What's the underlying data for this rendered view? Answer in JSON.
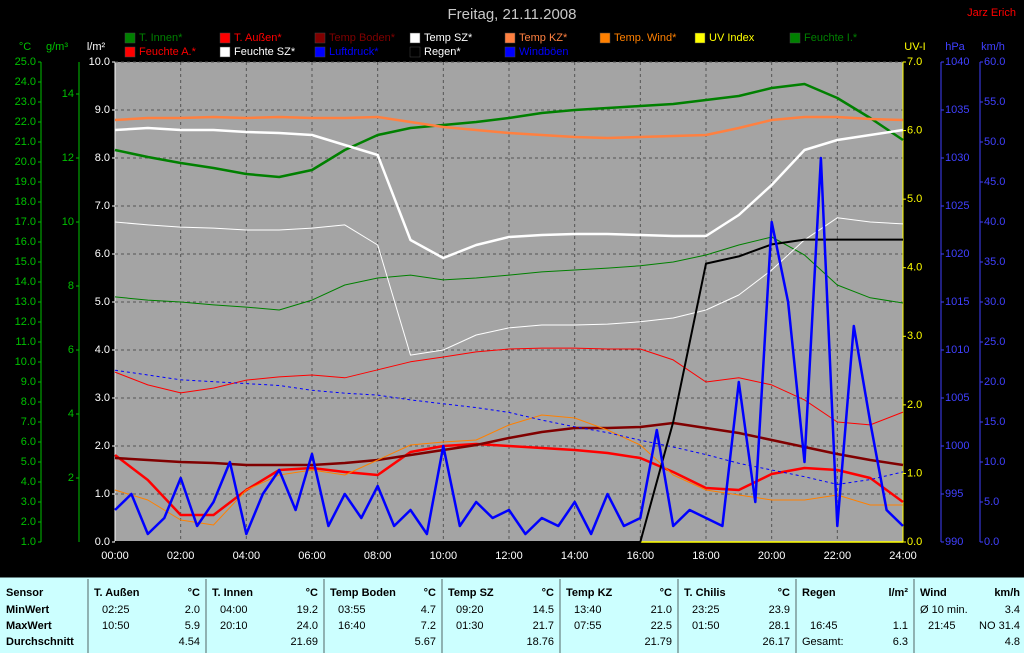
{
  "chart_data": {
    "type": "line",
    "title": "Freitag, 21.11.2008",
    "author": "Jarz Erich",
    "x": [
      0,
      1,
      2,
      3,
      4,
      5,
      6,
      7,
      8,
      9,
      10,
      11,
      12,
      13,
      14,
      15,
      16,
      17,
      18,
      19,
      20,
      21,
      22,
      23,
      24
    ],
    "xlim": [
      0,
      24
    ],
    "xticks": [
      {
        "value": 0,
        "label": "00:00"
      },
      {
        "value": 2,
        "label": "02:00"
      },
      {
        "value": 4,
        "label": "04:00"
      },
      {
        "value": 6,
        "label": "06:00"
      },
      {
        "value": 8,
        "label": "08:00"
      },
      {
        "value": 10,
        "label": "10:00"
      },
      {
        "value": 12,
        "label": "12:00"
      },
      {
        "value": 14,
        "label": "14:00"
      },
      {
        "value": 16,
        "label": "16:00"
      },
      {
        "value": 18,
        "label": "18:00"
      },
      {
        "value": 20,
        "label": "20:00"
      },
      {
        "value": 22,
        "label": "22:00"
      },
      {
        "value": 24,
        "label": "24:00"
      }
    ],
    "grid": true,
    "axes": [
      {
        "label": "°C",
        "side": "left",
        "color": "#00c000",
        "lim": [
          1,
          25
        ],
        "ticks": [
          {
            "value": 1,
            "label": "1.0"
          },
          {
            "value": 2,
            "label": "2.0"
          },
          {
            "value": 3,
            "label": "3.0"
          },
          {
            "value": 4,
            "label": "4.0"
          },
          {
            "value": 5,
            "label": "5.0"
          },
          {
            "value": 6,
            "label": "6.0"
          },
          {
            "value": 7,
            "label": "7.0"
          },
          {
            "value": 8,
            "label": "8.0"
          },
          {
            "value": 9,
            "label": "9.0"
          },
          {
            "value": 10,
            "label": "10.0"
          },
          {
            "value": 11,
            "label": "11.0"
          },
          {
            "value": 12,
            "label": "12.0"
          },
          {
            "value": 13,
            "label": "13.0"
          },
          {
            "value": 14,
            "label": "14.0"
          },
          {
            "value": 15,
            "label": "15.0"
          },
          {
            "value": 16,
            "label": "16.0"
          },
          {
            "value": 17,
            "label": "17.0"
          },
          {
            "value": 18,
            "label": "18.0"
          },
          {
            "value": 19,
            "label": "19.0"
          },
          {
            "value": 20,
            "label": "20.0"
          },
          {
            "value": 21,
            "label": "21.0"
          },
          {
            "value": 22,
            "label": "22.0"
          },
          {
            "value": 23,
            "label": "23.0"
          },
          {
            "value": 24,
            "label": "24.0"
          },
          {
            "value": 25,
            "label": "25.0"
          }
        ]
      },
      {
        "label": "g/m³",
        "side": "left",
        "color": "#00c000",
        "lim": [
          0,
          15
        ],
        "ticks": [
          2,
          4,
          6,
          8,
          10,
          12,
          14
        ]
      },
      {
        "label": "l/m²",
        "side": "left",
        "color": "#ffffff",
        "lim": [
          0,
          10
        ],
        "grid": true,
        "ticks": [
          {
            "value": 0,
            "label": "0.0"
          },
          {
            "value": 1,
            "label": "1.0"
          },
          {
            "value": 2,
            "label": "2.0"
          },
          {
            "value": 3,
            "label": "3.0"
          },
          {
            "value": 4,
            "label": "4.0"
          },
          {
            "value": 5,
            "label": "5.0"
          },
          {
            "value": 6,
            "label": "6.0"
          },
          {
            "value": 7,
            "label": "7.0"
          },
          {
            "value": 8,
            "label": "8.0"
          },
          {
            "value": 9,
            "label": "9.0"
          },
          {
            "value": 10,
            "label": "10.0"
          }
        ]
      },
      {
        "label": "UV-I",
        "side": "right",
        "color": "#ffff00",
        "lim": [
          0,
          7
        ],
        "ticks": [
          {
            "value": 0,
            "label": "0.0"
          },
          {
            "value": 1,
            "label": "1.0"
          },
          {
            "value": 2,
            "label": "2.0"
          },
          {
            "value": 3,
            "label": "3.0"
          },
          {
            "value": 4,
            "label": "4.0"
          },
          {
            "value": 5,
            "label": "5.0"
          },
          {
            "value": 6,
            "label": "6.0"
          },
          {
            "value": 7,
            "label": "7.0"
          }
        ]
      },
      {
        "label": "hPa",
        "side": "right",
        "color": "#4040ff",
        "lim": [
          990,
          1040
        ],
        "ticks": [
          990,
          995,
          1000,
          1005,
          1010,
          1015,
          1020,
          1025,
          1030,
          1035,
          1040
        ]
      },
      {
        "label": "km/h",
        "side": "right",
        "color": "#4040ff",
        "lim": [
          0,
          60
        ],
        "ticks": [
          {
            "value": 0,
            "label": "0.0"
          },
          {
            "value": 5,
            "label": "5.0"
          },
          {
            "value": 10,
            "label": "10.0"
          },
          {
            "value": 15,
            "label": "15.0"
          },
          {
            "value": 20,
            "label": "20.0"
          },
          {
            "value": 25,
            "label": "25.0"
          },
          {
            "value": 30,
            "label": "30.0"
          },
          {
            "value": 35,
            "label": "35.0"
          },
          {
            "value": 40,
            "label": "40.0"
          },
          {
            "value": 45,
            "label": "45.0"
          },
          {
            "value": 50,
            "label": "50.0"
          },
          {
            "value": 55,
            "label": "55.0"
          },
          {
            "value": 60,
            "label": "60.0"
          }
        ]
      }
    ],
    "series": [
      {
        "name": "T. Innen*",
        "color": "#008000",
        "axis": "°C",
        "line_width": 2.5,
        "values": [
          20.6,
          20.25,
          19.95,
          19.7,
          19.4,
          19.25,
          19.6,
          20.6,
          21.35,
          21.7,
          21.85,
          22.0,
          22.2,
          22.45,
          22.6,
          22.7,
          22.8,
          22.9,
          23.1,
          23.3,
          23.7,
          23.9,
          23.2,
          22.2,
          21.1
        ]
      },
      {
        "name": "T. Außen*",
        "color": "#ff0000",
        "axis": "°C",
        "line_width": 2.5,
        "values": [
          5.35,
          4.1,
          2.35,
          2.35,
          3.6,
          4.6,
          4.7,
          4.5,
          4.35,
          5.5,
          5.8,
          5.9,
          5.8,
          5.7,
          5.6,
          5.45,
          5.2,
          4.5,
          3.7,
          3.6,
          4.4,
          4.7,
          4.6,
          4.2,
          3.0
        ]
      },
      {
        "name": "Temp Boden*",
        "color": "#800000",
        "axis": "°C",
        "line_width": 2.5,
        "values": [
          5.2,
          5.1,
          5.0,
          4.95,
          4.85,
          4.85,
          4.85,
          4.95,
          5.1,
          5.35,
          5.6,
          5.85,
          6.2,
          6.5,
          6.7,
          6.7,
          6.75,
          6.95,
          6.7,
          6.45,
          6.1,
          5.75,
          5.4,
          5.1,
          4.85
        ]
      },
      {
        "name": "Temp SZ*",
        "color": "#ffffff",
        "axis": "°C",
        "line_width": 2.5,
        "values": [
          21.6,
          21.7,
          21.6,
          21.6,
          21.5,
          21.45,
          21.35,
          20.85,
          20.35,
          16.1,
          15.2,
          15.85,
          16.25,
          16.35,
          16.4,
          16.4,
          16.35,
          16.3,
          16.3,
          17.35,
          18.85,
          20.6,
          21.1,
          21.35,
          21.6
        ]
      },
      {
        "name": "Temp KZ*",
        "color": "#ff8040",
        "axis": "°C",
        "line_width": 2.5,
        "values": [
          22.1,
          22.2,
          22.2,
          22.25,
          22.2,
          22.25,
          22.2,
          22.2,
          22.25,
          22.0,
          21.75,
          21.6,
          21.45,
          21.35,
          21.25,
          21.2,
          21.25,
          21.3,
          21.35,
          21.7,
          22.1,
          22.25,
          22.25,
          22.15,
          22.1
        ]
      },
      {
        "name": "Temp. Wind*",
        "color": "#ff8000",
        "axis": "°C",
        "line_width": 1,
        "values": [
          3.6,
          3.1,
          2.1,
          1.85,
          3.6,
          4.35,
          4.6,
          4.35,
          5.1,
          5.85,
          6.0,
          6.1,
          6.85,
          7.35,
          7.2,
          6.6,
          5.85,
          4.35,
          3.6,
          3.35,
          3.1,
          3.1,
          3.35,
          2.85,
          2.85
        ]
      },
      {
        "name": "UV Index",
        "color": "#ffff00",
        "axis": "UV-I",
        "line_width": 1.5,
        "values": [
          0,
          0,
          0,
          0,
          0,
          0,
          0,
          0,
          0,
          0,
          0,
          0,
          0,
          0,
          0,
          0,
          0,
          0,
          0,
          0,
          0,
          0,
          0,
          0,
          0
        ]
      },
      {
        "name": "Feuchte I.*",
        "color": "#008000",
        "axis": "g/m³",
        "line_width": 1,
        "values": [
          7.66,
          7.56,
          7.5,
          7.41,
          7.34,
          7.25,
          7.56,
          8.03,
          8.25,
          8.34,
          8.19,
          8.25,
          8.34,
          8.44,
          8.5,
          8.56,
          8.63,
          8.75,
          8.97,
          9.28,
          9.53,
          8.97,
          8.03,
          7.63,
          7.47
        ]
      },
      {
        "name": "Feuchte A.*",
        "color": "#ff0000",
        "axis": "g/m³",
        "line_width": 1,
        "values": [
          5.31,
          4.91,
          4.66,
          4.81,
          5.06,
          5.16,
          5.22,
          5.13,
          5.38,
          5.63,
          5.78,
          5.94,
          6.03,
          6.06,
          6.06,
          6.03,
          6.03,
          5.69,
          5.0,
          5.13,
          4.91,
          4.44,
          3.75,
          3.66,
          4.06
        ]
      },
      {
        "name": "Feuchte SZ*",
        "color": "#ffffff",
        "axis": "g/m³",
        "line_width": 1,
        "values": [
          10.0,
          9.91,
          9.84,
          9.81,
          9.75,
          9.75,
          9.81,
          9.91,
          9.28,
          5.84,
          6.0,
          6.47,
          6.69,
          6.78,
          6.78,
          6.81,
          6.88,
          7.0,
          7.25,
          7.72,
          8.5,
          9.44,
          10.13,
          10.0,
          9.94
        ]
      },
      {
        "name": "Luftdruck*",
        "color": "#0000ff",
        "axis": "hPa",
        "line_width": 1,
        "dashed": true,
        "values": [
          1007.9,
          1007.4,
          1006.9,
          1006.7,
          1006.5,
          1006.3,
          1005.8,
          1005.5,
          1005.3,
          1004.8,
          1004.4,
          1004.0,
          1003.5,
          1002.7,
          1002.0,
          1001.4,
          1000.6,
          999.9,
          999.1,
          998.2,
          997.5,
          996.8,
          996.0,
          996.5,
          997.3
        ]
      },
      {
        "name": "Regen*",
        "color": "#000000",
        "axis": "l/m²",
        "line_width": 2,
        "values": [
          0,
          0,
          0,
          0,
          0,
          0,
          0,
          0,
          0,
          0,
          0,
          0,
          0,
          0,
          0,
          0,
          0,
          2.5,
          5.8,
          5.95,
          6.2,
          6.3,
          6.3,
          6.3,
          6.3
        ]
      },
      {
        "name": "Windböen",
        "color": "#0000ff",
        "axis": "km/h",
        "line_width": 2.5,
        "x": [
          0,
          0.5,
          1,
          1.5,
          2,
          2.5,
          3,
          3.5,
          4,
          4.5,
          5,
          5.5,
          6,
          6.5,
          7,
          7.5,
          8,
          8.5,
          9,
          9.5,
          10,
          10.5,
          11,
          11.5,
          12,
          12.5,
          13,
          13.5,
          14,
          14.5,
          15,
          15.5,
          16,
          16.5,
          17,
          17.5,
          18,
          18.5,
          19,
          19.5,
          20,
          20.5,
          21,
          21.5,
          22,
          22.5,
          23,
          23.5,
          24
        ],
        "values": [
          4,
          6,
          1,
          3,
          8,
          2,
          5,
          10,
          1,
          6,
          9,
          4,
          11,
          2,
          6,
          3,
          7,
          2,
          4,
          1,
          12,
          2,
          5,
          3,
          4,
          1,
          3,
          2,
          5,
          1,
          6,
          2,
          3,
          14,
          2,
          4,
          3,
          2,
          20,
          5,
          40,
          30,
          10,
          48,
          2,
          27,
          15,
          4,
          2
        ]
      }
    ]
  },
  "table": {
    "header": "Sensor",
    "row_labels": [
      "MinWert",
      "MaxWert",
      "Durchschnitt"
    ],
    "groups": [
      {
        "name": "T. Außen",
        "unit": "°C",
        "rows": [
          [
            "02:25",
            "2.0"
          ],
          [
            "10:50",
            "5.9"
          ],
          [
            null,
            "4.54"
          ]
        ]
      },
      {
        "name": "T. Innen",
        "unit": "°C",
        "rows": [
          [
            "04:00",
            "19.2"
          ],
          [
            "20:10",
            "24.0"
          ],
          [
            null,
            "21.69"
          ]
        ]
      },
      {
        "name": "Temp Boden",
        "unit": "°C",
        "rows": [
          [
            "03:55",
            "4.7"
          ],
          [
            "16:40",
            "7.2"
          ],
          [
            null,
            "5.67"
          ]
        ]
      },
      {
        "name": "Temp SZ",
        "unit": "°C",
        "rows": [
          [
            "09:20",
            "14.5"
          ],
          [
            "01:30",
            "21.7"
          ],
          [
            null,
            "18.76"
          ]
        ]
      },
      {
        "name": "Temp KZ",
        "unit": "°C",
        "rows": [
          [
            "13:40",
            "21.0"
          ],
          [
            "07:55",
            "22.5"
          ],
          [
            null,
            "21.79"
          ]
        ]
      },
      {
        "name": "T. Chilis",
        "unit": "°C",
        "rows": [
          [
            "23:25",
            "23.9"
          ],
          [
            "01:50",
            "28.1"
          ],
          [
            null,
            "26.17"
          ]
        ]
      },
      {
        "name": "Regen",
        "unit": "l/m²",
        "rows": [
          [
            null,
            null
          ],
          [
            "16:45",
            "1.1"
          ],
          [
            "Gesamt:",
            "6.3"
          ]
        ]
      },
      {
        "name": "Wind",
        "unit": "km/h",
        "rows": [
          [
            "Ø 10 min.",
            "3.4"
          ],
          [
            "21:45",
            "NO 31.4"
          ],
          [
            null,
            "4.8"
          ]
        ]
      }
    ]
  }
}
